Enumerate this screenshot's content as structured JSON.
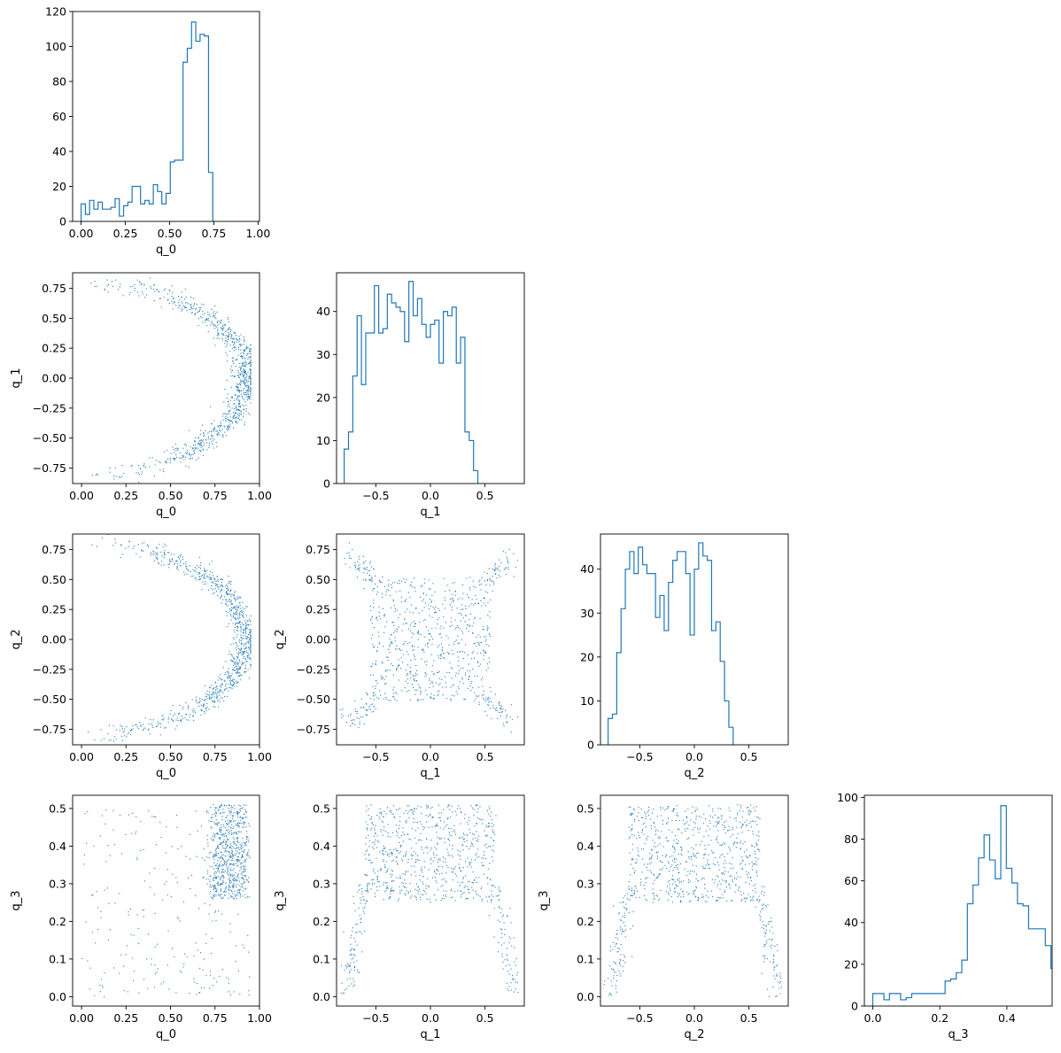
{
  "figure": {
    "type": "corner-plot",
    "variables": [
      "q_0",
      "q_1",
      "q_2",
      "q_3"
    ],
    "colors": {
      "series": "#1f77b4",
      "axis": "#000000"
    }
  },
  "chart_data": [
    {
      "id": "hist-q0",
      "type": "bar",
      "style": "step-histogram",
      "xlabel": "q_0",
      "ylabel": "",
      "xlim": [
        -0.048,
        1.008
      ],
      "ylim": [
        0,
        120
      ],
      "xticks": [
        0.0,
        0.25,
        0.5,
        0.75,
        1.0
      ],
      "xticklabels": [
        "0.00",
        "0.25",
        "0.50",
        "0.75",
        "1.00"
      ],
      "yticks": [
        0,
        20,
        40,
        60,
        80,
        100,
        120
      ],
      "yticklabels": [
        "0",
        "20",
        "40",
        "60",
        "80",
        "100",
        "120"
      ],
      "bin_start": 0.0,
      "bin_width": 0.024,
      "values": [
        10,
        4,
        12,
        7,
        11,
        7,
        7,
        8,
        13,
        3,
        9,
        11,
        20,
        20,
        10,
        12,
        10,
        21,
        17,
        10,
        16,
        34,
        35,
        35,
        91,
        99,
        114,
        103,
        107,
        106,
        28
      ]
    },
    {
      "id": "scatter-q0-q1",
      "type": "scatter",
      "xlabel": "q_0",
      "ylabel": "q_1",
      "xlim": [
        -0.05,
        1.0
      ],
      "ylim": [
        -0.88,
        0.88
      ],
      "xticks": [
        0.0,
        0.25,
        0.5,
        0.75,
        1.0
      ],
      "xticklabels": [
        "0.00",
        "0.25",
        "0.50",
        "0.75",
        "1.00"
      ],
      "yticks": [
        -0.75,
        -0.5,
        -0.25,
        0.0,
        0.25,
        0.5,
        0.75
      ],
      "yticklabels": [
        "−0.75",
        "−0.50",
        "−0.25",
        "0.00",
        "0.25",
        "0.50",
        "0.75"
      ],
      "point_count": 900,
      "point_pattern": "half-ring opening left: q_1 = ±0.8·sin(θ), q_0 = 0.95·cos(θ)"
    },
    {
      "id": "hist-q1",
      "type": "bar",
      "style": "step-histogram",
      "xlabel": "q_1",
      "ylabel": "",
      "xlim": [
        -0.86,
        0.86
      ],
      "ylim": [
        0,
        49
      ],
      "xticks": [
        -0.5,
        0.0,
        0.5
      ],
      "xticklabels": [
        "−0.5",
        "0.0",
        "0.5"
      ],
      "yticks": [
        0,
        10,
        20,
        30,
        40
      ],
      "yticklabels": [
        "0",
        "10",
        "20",
        "30",
        "40"
      ],
      "bin_start": -0.79,
      "bin_width": 0.0395,
      "values": [
        8,
        12,
        25,
        39,
        23,
        35,
        35,
        46,
        35,
        36,
        44,
        42,
        41,
        40,
        33,
        47,
        39,
        43,
        37,
        34,
        37,
        38,
        28,
        40,
        39,
        41,
        28,
        34,
        12,
        10,
        3
      ]
    },
    {
      "id": "scatter-q0-q2",
      "type": "scatter",
      "xlabel": "q_0",
      "ylabel": "q_2",
      "xlim": [
        -0.05,
        1.0
      ],
      "ylim": [
        -0.88,
        0.88
      ],
      "xticks": [
        0.0,
        0.25,
        0.5,
        0.75,
        1.0
      ],
      "xticklabels": [
        "0.00",
        "0.25",
        "0.50",
        "0.75",
        "1.00"
      ],
      "yticks": [
        -0.75,
        -0.5,
        -0.25,
        0.0,
        0.25,
        0.5,
        0.75
      ],
      "yticklabels": [
        "−0.75",
        "−0.50",
        "−0.25",
        "0.00",
        "0.25",
        "0.50",
        "0.75"
      ],
      "point_count": 900,
      "point_pattern": "half-ring opening left"
    },
    {
      "id": "scatter-q1-q2",
      "type": "scatter",
      "xlabel": "q_1",
      "ylabel": "q_2",
      "xlim": [
        -0.86,
        0.86
      ],
      "ylim": [
        -0.88,
        0.88
      ],
      "xticks": [
        -0.5,
        0.0,
        0.5
      ],
      "xticklabels": [
        "−0.5",
        "0.0",
        "0.5"
      ],
      "yticks": [
        -0.75,
        -0.5,
        -0.25,
        0.0,
        0.25,
        0.5,
        0.75
      ],
      "yticklabels": [
        "−0.75",
        "−0.50",
        "−0.25",
        "0.00",
        "0.25",
        "0.50",
        "0.75"
      ],
      "point_count": 900,
      "point_pattern": "square with four corner lobes"
    },
    {
      "id": "hist-q2",
      "type": "bar",
      "style": "step-histogram",
      "xlabel": "q_2",
      "ylabel": "",
      "xlim": [
        -0.86,
        0.86
      ],
      "ylim": [
        0,
        48
      ],
      "xticks": [
        -0.5,
        0.0,
        0.5
      ],
      "xticklabels": [
        "−0.5",
        "0.0",
        "0.5"
      ],
      "yticks": [
        0,
        10,
        20,
        30,
        40
      ],
      "yticklabels": [
        "0",
        "10",
        "20",
        "30",
        "40"
      ],
      "bin_start": -0.79,
      "bin_width": 0.0395,
      "values": [
        6,
        7,
        21,
        31,
        40,
        44,
        39,
        45,
        41,
        39,
        39,
        29,
        34,
        26,
        37,
        42,
        44,
        44,
        39,
        25,
        40,
        46,
        43,
        42,
        26,
        28,
        19,
        10,
        4
      ]
    },
    {
      "id": "scatter-q0-q3",
      "type": "scatter",
      "xlabel": "q_0",
      "ylabel": "q_3",
      "xlim": [
        -0.05,
        1.0
      ],
      "ylim": [
        -0.025,
        0.535
      ],
      "xticks": [
        0.0,
        0.25,
        0.5,
        0.75,
        1.0
      ],
      "xticklabels": [
        "0.00",
        "0.25",
        "0.50",
        "0.75",
        "1.00"
      ],
      "yticks": [
        0.0,
        0.1,
        0.2,
        0.3,
        0.4,
        0.5
      ],
      "yticklabels": [
        "0.0",
        "0.1",
        "0.2",
        "0.3",
        "0.4",
        "0.5"
      ],
      "point_count": 900,
      "point_pattern": "dense cluster near q_0≈0.85, sparse elsewhere"
    },
    {
      "id": "scatter-q1-q3",
      "type": "scatter",
      "xlabel": "q_1",
      "ylabel": "q_3",
      "xlim": [
        -0.86,
        0.86
      ],
      "ylim": [
        -0.025,
        0.535
      ],
      "xticks": [
        -0.5,
        0.0,
        0.5
      ],
      "xticklabels": [
        "−0.5",
        "0.0",
        "0.5"
      ],
      "yticks": [
        0.0,
        0.1,
        0.2,
        0.3,
        0.4,
        0.5
      ],
      "yticklabels": [
        "0.0",
        "0.1",
        "0.2",
        "0.3",
        "0.4",
        "0.5"
      ],
      "point_count": 900,
      "point_pattern": "arch"
    },
    {
      "id": "scatter-q2-q3",
      "type": "scatter",
      "xlabel": "q_2",
      "ylabel": "q_3",
      "xlim": [
        -0.86,
        0.86
      ],
      "ylim": [
        -0.025,
        0.535
      ],
      "xticks": [
        -0.5,
        0.0,
        0.5
      ],
      "xticklabels": [
        "−0.5",
        "0.0",
        "0.5"
      ],
      "yticks": [
        0.0,
        0.1,
        0.2,
        0.3,
        0.4,
        0.5
      ],
      "yticklabels": [
        "0.0",
        "0.1",
        "0.2",
        "0.3",
        "0.4",
        "0.5"
      ],
      "point_count": 900,
      "point_pattern": "arch"
    },
    {
      "id": "hist-q3",
      "type": "bar",
      "style": "step-histogram",
      "xlabel": "q_3",
      "ylabel": "",
      "xlim": [
        -0.025,
        0.535
      ],
      "ylim": [
        0,
        101
      ],
      "xticks": [
        0.0,
        0.2,
        0.4
      ],
      "xticklabels": [
        "0.0",
        "0.2",
        "0.4"
      ],
      "yticks": [
        0,
        20,
        40,
        60,
        80,
        100
      ],
      "yticklabels": [
        "0",
        "20",
        "40",
        "60",
        "80",
        "100"
      ],
      "bin_start": 0.0,
      "bin_width": 0.0166,
      "values": [
        6,
        6,
        3,
        6,
        6,
        3,
        4,
        6,
        6,
        6,
        6,
        6,
        6,
        12,
        13,
        16,
        22,
        49,
        58,
        71,
        82,
        70,
        61,
        96,
        66,
        59,
        49,
        48,
        37,
        37,
        37,
        29,
        18
      ]
    }
  ]
}
